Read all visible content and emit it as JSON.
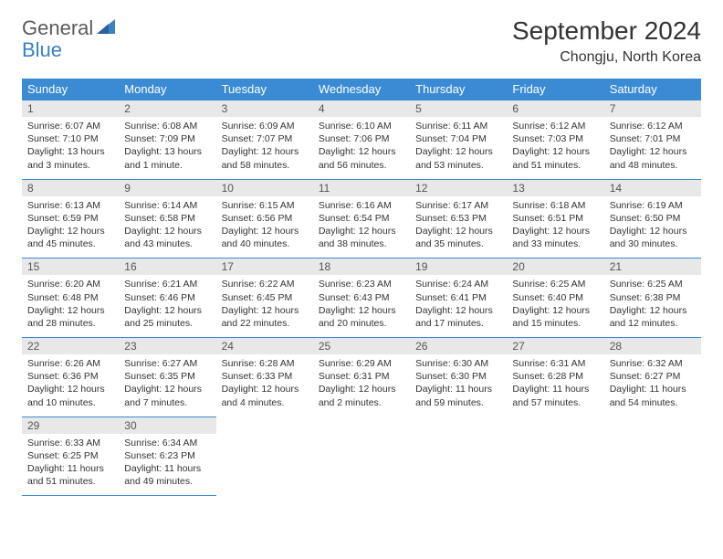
{
  "logo": {
    "part1": "General",
    "part2": "Blue"
  },
  "title": "September 2024",
  "location": "Chongju, North Korea",
  "colors": {
    "header_bg": "#3b8bd4",
    "header_text": "#ffffff",
    "daynum_bg": "#e8e8e8",
    "border": "#3b8bd4",
    "logo_gray": "#5a5a5a",
    "logo_blue": "#3b7fc4",
    "text": "#333333",
    "background": "#ffffff"
  },
  "typography": {
    "title_fontsize": 28,
    "location_fontsize": 16,
    "header_fontsize": 13,
    "daynum_fontsize": 12,
    "body_fontsize": 10.5
  },
  "weekdays": [
    "Sunday",
    "Monday",
    "Tuesday",
    "Wednesday",
    "Thursday",
    "Friday",
    "Saturday"
  ],
  "weeks": [
    [
      {
        "n": "1",
        "sunrise": "Sunrise: 6:07 AM",
        "sunset": "Sunset: 7:10 PM",
        "daylight": "Daylight: 13 hours and 3 minutes."
      },
      {
        "n": "2",
        "sunrise": "Sunrise: 6:08 AM",
        "sunset": "Sunset: 7:09 PM",
        "daylight": "Daylight: 13 hours and 1 minute."
      },
      {
        "n": "3",
        "sunrise": "Sunrise: 6:09 AM",
        "sunset": "Sunset: 7:07 PM",
        "daylight": "Daylight: 12 hours and 58 minutes."
      },
      {
        "n": "4",
        "sunrise": "Sunrise: 6:10 AM",
        "sunset": "Sunset: 7:06 PM",
        "daylight": "Daylight: 12 hours and 56 minutes."
      },
      {
        "n": "5",
        "sunrise": "Sunrise: 6:11 AM",
        "sunset": "Sunset: 7:04 PM",
        "daylight": "Daylight: 12 hours and 53 minutes."
      },
      {
        "n": "6",
        "sunrise": "Sunrise: 6:12 AM",
        "sunset": "Sunset: 7:03 PM",
        "daylight": "Daylight: 12 hours and 51 minutes."
      },
      {
        "n": "7",
        "sunrise": "Sunrise: 6:12 AM",
        "sunset": "Sunset: 7:01 PM",
        "daylight": "Daylight: 12 hours and 48 minutes."
      }
    ],
    [
      {
        "n": "8",
        "sunrise": "Sunrise: 6:13 AM",
        "sunset": "Sunset: 6:59 PM",
        "daylight": "Daylight: 12 hours and 45 minutes."
      },
      {
        "n": "9",
        "sunrise": "Sunrise: 6:14 AM",
        "sunset": "Sunset: 6:58 PM",
        "daylight": "Daylight: 12 hours and 43 minutes."
      },
      {
        "n": "10",
        "sunrise": "Sunrise: 6:15 AM",
        "sunset": "Sunset: 6:56 PM",
        "daylight": "Daylight: 12 hours and 40 minutes."
      },
      {
        "n": "11",
        "sunrise": "Sunrise: 6:16 AM",
        "sunset": "Sunset: 6:54 PM",
        "daylight": "Daylight: 12 hours and 38 minutes."
      },
      {
        "n": "12",
        "sunrise": "Sunrise: 6:17 AM",
        "sunset": "Sunset: 6:53 PM",
        "daylight": "Daylight: 12 hours and 35 minutes."
      },
      {
        "n": "13",
        "sunrise": "Sunrise: 6:18 AM",
        "sunset": "Sunset: 6:51 PM",
        "daylight": "Daylight: 12 hours and 33 minutes."
      },
      {
        "n": "14",
        "sunrise": "Sunrise: 6:19 AM",
        "sunset": "Sunset: 6:50 PM",
        "daylight": "Daylight: 12 hours and 30 minutes."
      }
    ],
    [
      {
        "n": "15",
        "sunrise": "Sunrise: 6:20 AM",
        "sunset": "Sunset: 6:48 PM",
        "daylight": "Daylight: 12 hours and 28 minutes."
      },
      {
        "n": "16",
        "sunrise": "Sunrise: 6:21 AM",
        "sunset": "Sunset: 6:46 PM",
        "daylight": "Daylight: 12 hours and 25 minutes."
      },
      {
        "n": "17",
        "sunrise": "Sunrise: 6:22 AM",
        "sunset": "Sunset: 6:45 PM",
        "daylight": "Daylight: 12 hours and 22 minutes."
      },
      {
        "n": "18",
        "sunrise": "Sunrise: 6:23 AM",
        "sunset": "Sunset: 6:43 PM",
        "daylight": "Daylight: 12 hours and 20 minutes."
      },
      {
        "n": "19",
        "sunrise": "Sunrise: 6:24 AM",
        "sunset": "Sunset: 6:41 PM",
        "daylight": "Daylight: 12 hours and 17 minutes."
      },
      {
        "n": "20",
        "sunrise": "Sunrise: 6:25 AM",
        "sunset": "Sunset: 6:40 PM",
        "daylight": "Daylight: 12 hours and 15 minutes."
      },
      {
        "n": "21",
        "sunrise": "Sunrise: 6:25 AM",
        "sunset": "Sunset: 6:38 PM",
        "daylight": "Daylight: 12 hours and 12 minutes."
      }
    ],
    [
      {
        "n": "22",
        "sunrise": "Sunrise: 6:26 AM",
        "sunset": "Sunset: 6:36 PM",
        "daylight": "Daylight: 12 hours and 10 minutes."
      },
      {
        "n": "23",
        "sunrise": "Sunrise: 6:27 AM",
        "sunset": "Sunset: 6:35 PM",
        "daylight": "Daylight: 12 hours and 7 minutes."
      },
      {
        "n": "24",
        "sunrise": "Sunrise: 6:28 AM",
        "sunset": "Sunset: 6:33 PM",
        "daylight": "Daylight: 12 hours and 4 minutes."
      },
      {
        "n": "25",
        "sunrise": "Sunrise: 6:29 AM",
        "sunset": "Sunset: 6:31 PM",
        "daylight": "Daylight: 12 hours and 2 minutes."
      },
      {
        "n": "26",
        "sunrise": "Sunrise: 6:30 AM",
        "sunset": "Sunset: 6:30 PM",
        "daylight": "Daylight: 11 hours and 59 minutes."
      },
      {
        "n": "27",
        "sunrise": "Sunrise: 6:31 AM",
        "sunset": "Sunset: 6:28 PM",
        "daylight": "Daylight: 11 hours and 57 minutes."
      },
      {
        "n": "28",
        "sunrise": "Sunrise: 6:32 AM",
        "sunset": "Sunset: 6:27 PM",
        "daylight": "Daylight: 11 hours and 54 minutes."
      }
    ],
    [
      {
        "n": "29",
        "sunrise": "Sunrise: 6:33 AM",
        "sunset": "Sunset: 6:25 PM",
        "daylight": "Daylight: 11 hours and 51 minutes."
      },
      {
        "n": "30",
        "sunrise": "Sunrise: 6:34 AM",
        "sunset": "Sunset: 6:23 PM",
        "daylight": "Daylight: 11 hours and 49 minutes."
      },
      {
        "empty": true
      },
      {
        "empty": true
      },
      {
        "empty": true
      },
      {
        "empty": true
      },
      {
        "empty": true
      }
    ]
  ]
}
